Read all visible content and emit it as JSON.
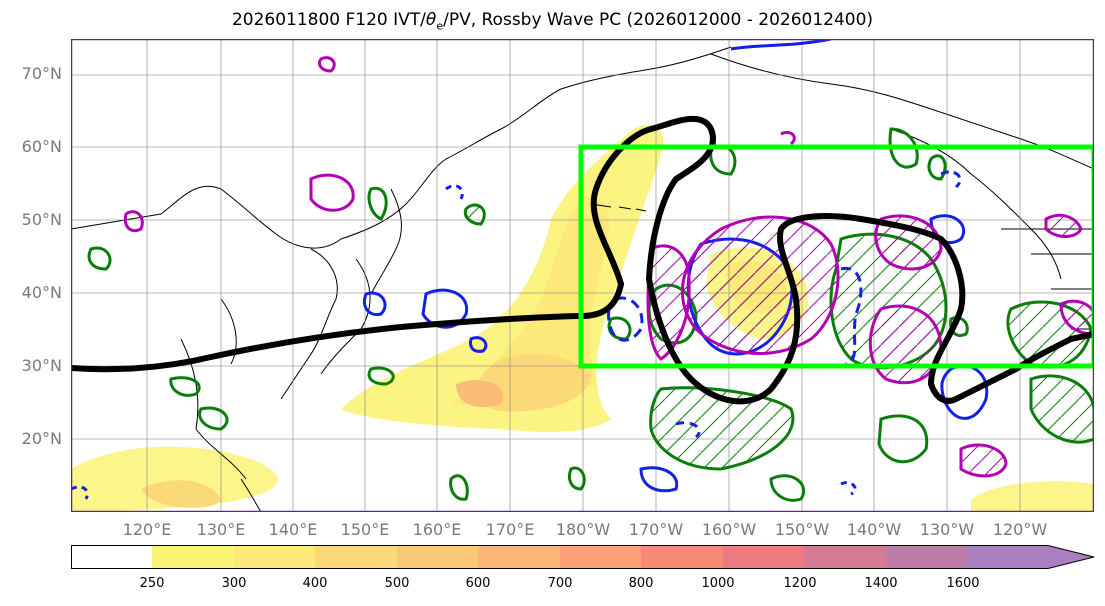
{
  "title": {
    "prefix": "2026011800 F120 IVT/",
    "theta": "θ",
    "theta_sub": "e",
    "suffix": "/PV, Rossby Wave PC (2026012000 - 2026012400)"
  },
  "lat_labels": [
    "70°N",
    "60°N",
    "50°N",
    "40°N",
    "30°N",
    "20°N"
  ],
  "lon_labels": [
    "120°E",
    "130°E",
    "140°E",
    "150°E",
    "160°E",
    "170°E",
    "180°W",
    "170°W",
    "160°W",
    "150°W",
    "140°W",
    "130°W",
    "120°W"
  ],
  "colorbar": {
    "ticks": [
      "250",
      "300",
      "400",
      "500",
      "600",
      "700",
      "800",
      "1000",
      "1200",
      "1400",
      "1600"
    ],
    "colors": [
      "#fbf376",
      "#fce979",
      "#fcd978",
      "#fcc878",
      "#fcb677",
      "#fca276",
      "#f88a75",
      "#ec7a7e",
      "#d47a92",
      "#bd7da8",
      "#a97fc0"
    ]
  },
  "colors": {
    "box": "#00ff00",
    "trough_contour": "#000000",
    "pv_green": "#0a7d0a",
    "pv_blue": "#1320e6",
    "pv_magenta": "#b300b3"
  }
}
